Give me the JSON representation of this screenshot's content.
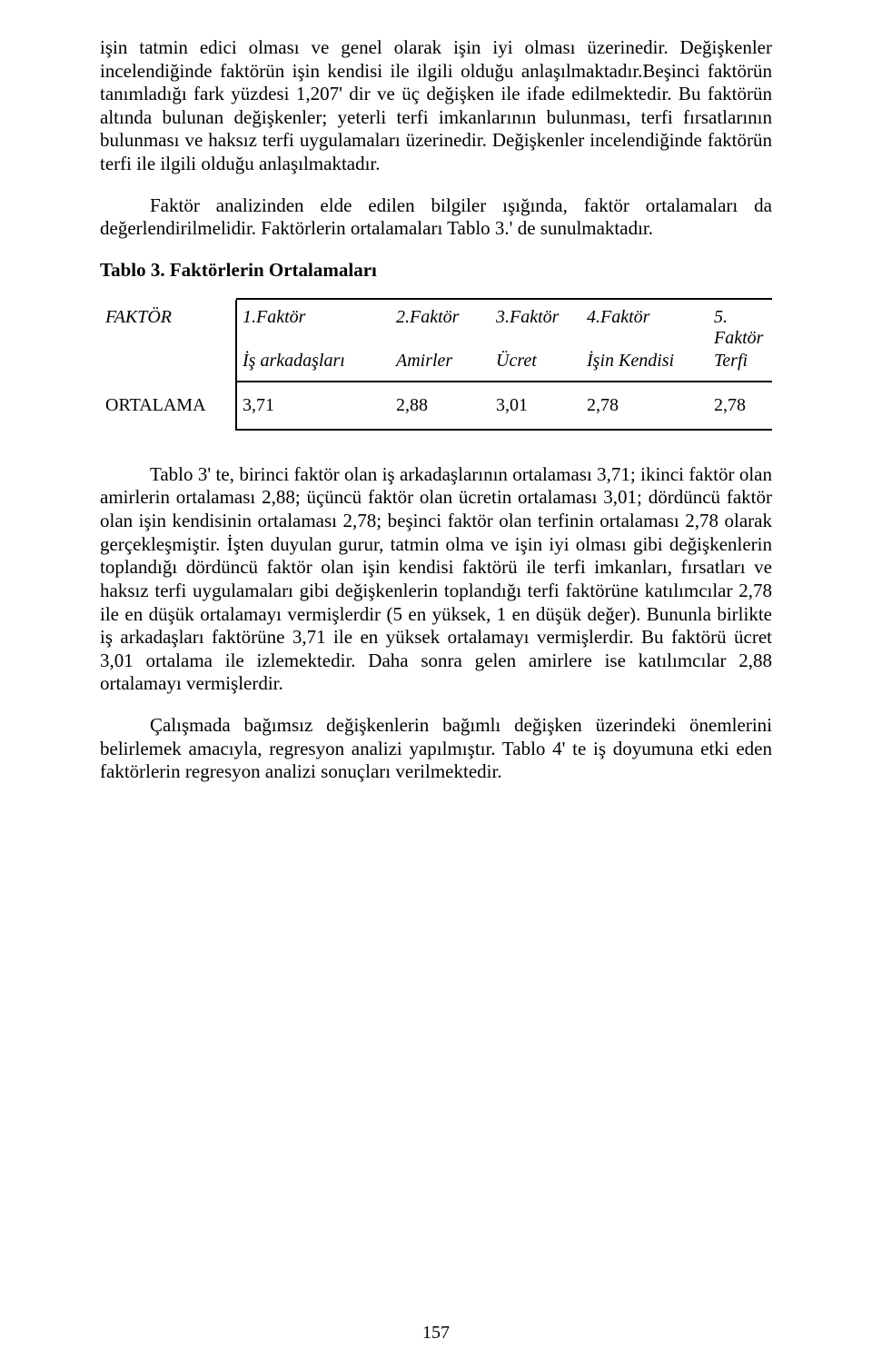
{
  "paragraphs": {
    "p1": "işin tatmin edici olması ve genel olarak işin iyi olması üzerinedir. Değişkenler incelendiğinde faktörün işin kendisi ile ilgili olduğu anlaşılmaktadır.Beşinci faktörün tanımladığı fark yüzdesi 1,207' dir ve üç değişken ile ifade edilmektedir. Bu faktörün altında bulunan değişkenler; yeterli terfi imkanlarının bulunması, terfi fırsatlarının bulunması ve haksız terfi uygulamaları üzerinedir. Değişkenler incelendiğinde faktörün terfi  ile ilgili olduğu anlaşılmaktadır.",
    "p2": "Faktör analizinden elde edilen bilgiler ışığında, faktör ortalamaları da değerlendirilmelidir. Faktörlerin ortalamaları Tablo 3.' de sunulmaktadır.",
    "p3": "Tablo 3' te, birinci faktör olan iş arkadaşlarının ortalaması 3,71; ikinci faktör olan amirlerin ortalaması 2,88; üçüncü faktör olan ücretin ortalaması 3,01; dördüncü faktör olan işin kendisinin ortalaması 2,78; beşinci faktör olan terfinin ortalaması 2,78 olarak gerçekleşmiştir. İşten duyulan gurur, tatmin olma ve işin iyi olması gibi değişkenlerin toplandığı dördüncü faktör olan işin kendisi faktörü ile terfi imkanları, fırsatları ve haksız terfi uygulamaları gibi değişkenlerin toplandığı terfi faktörüne  katılımcılar 2,78 ile en düşük ortalamayı vermişlerdir (5 en yüksek, 1 en düşük değer). Bununla birlikte iş arkadaşları faktörüne 3,71 ile en yüksek  ortalamayı vermişlerdir. Bu faktörü ücret 3,01 ortalama ile izlemektedir. Daha sonra gelen amirlere ise katılımcılar 2,88 ortalamayı vermişlerdir.",
    "p4": "Çalışmada bağımsız değişkenlerin bağımlı değişken üzerindeki önemlerini belirlemek amacıyla, regresyon analizi yapılmıştır. Tablo 4' te iş doyumuna etki eden faktörlerin regresyon analizi sonuçları verilmektedir."
  },
  "table_heading": "Tablo 3. Faktörlerin Ortalamaları",
  "table": {
    "row_label_header": "FAKTÖR",
    "row_label_values": "ORTALAMA",
    "columns": [
      {
        "top": "1.Faktör",
        "sub": "İş arkadaşları"
      },
      {
        "top": "2.Faktör",
        "sub": "Amirler"
      },
      {
        "top": "3.Faktör",
        "sub": "Ücret"
      },
      {
        "top": "4.Faktör",
        "sub": "İşin Kendisi"
      },
      {
        "top": "5. Faktör",
        "sub": "Terfi"
      }
    ],
    "values": [
      "3,71",
      "2,88",
      "3,01",
      "2,78",
      "2,78"
    ]
  },
  "page_number": "157"
}
